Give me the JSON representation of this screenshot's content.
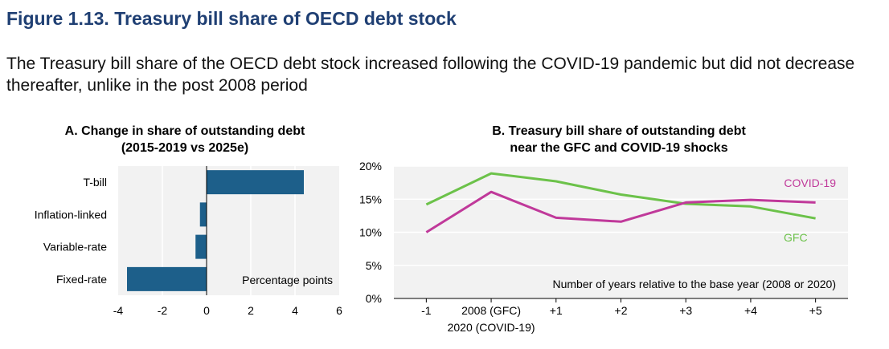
{
  "figure": {
    "title": "Figure 1.13. Treasury bill share of OECD debt stock",
    "subtitle": "The Treasury bill share of the OECD debt stock increased following the COVID-19 pandemic but did not decrease thereafter, unlike in the post 2008 period"
  },
  "colors": {
    "bar": "#1d5f8a",
    "covid": "#c0399a",
    "gfc": "#6cc24a",
    "plot_bg": "#f2f2f2",
    "grid": "#ffffff"
  },
  "chart_data": [
    {
      "type": "bar",
      "orientation": "horizontal",
      "title_line1": "A. Change in share of outstanding debt",
      "title_line2": "(2015-2019 vs 2025e)",
      "categories": [
        "T-bill",
        "Inflation-linked",
        "Variable-rate",
        "Fixed-rate"
      ],
      "values": [
        4.4,
        -0.3,
        -0.5,
        -3.6
      ],
      "xlim": [
        -4,
        6
      ],
      "xticks": [
        "-4",
        "-2",
        "0",
        "2",
        "4",
        "6"
      ],
      "annotation": "Percentage points"
    },
    {
      "type": "line",
      "title_line1": "B. Treasury bill share of outstanding debt",
      "title_line2": "near the GFC and COVID-19 shocks",
      "x": [
        -1,
        0,
        1,
        2,
        3,
        4,
        5
      ],
      "x_tick_labels": [
        "-1",
        "2008 (GFC)",
        "+1",
        "+2",
        "+3",
        "+4",
        "+5"
      ],
      "x_tick_label_0_line2": "2020 (COVID-19)",
      "xlabel": "Number of years relative to the base year (2008 or 2020)",
      "ylim": [
        0,
        20
      ],
      "y_tick_labels": [
        "0%",
        "5%",
        "10%",
        "15%",
        "20%"
      ],
      "series": [
        {
          "name": "COVID-19",
          "values": [
            10.0,
            16.1,
            12.2,
            11.6,
            14.5,
            14.9,
            14.5
          ]
        },
        {
          "name": "GFC",
          "values": [
            14.2,
            18.9,
            17.7,
            15.7,
            14.3,
            13.9,
            12.1
          ]
        }
      ]
    }
  ]
}
